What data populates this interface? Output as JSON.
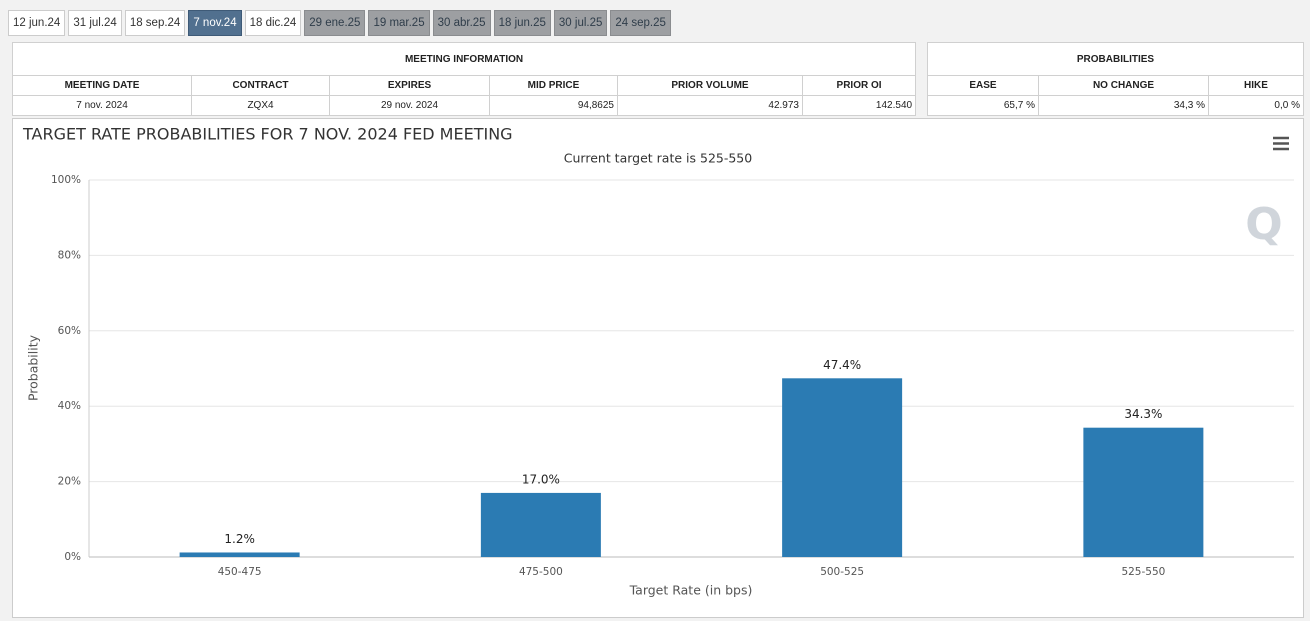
{
  "tabs": [
    "12 jun.24",
    "31 jul.24",
    "18 sep.24",
    "7 nov.24",
    "18 dic.24",
    "29 ene.25",
    "19 mar.25",
    "30 abr.25",
    "18 jun.25",
    "30 jul.25",
    "24 sep.25"
  ],
  "active_tab": 3,
  "meeting_information": {
    "title": "MEETING INFORMATION",
    "headers": [
      "MEETING DATE",
      "CONTRACT",
      "EXPIRES",
      "MID PRICE",
      "PRIOR VOLUME",
      "PRIOR OI"
    ],
    "rows": [
      [
        "7 nov. 2024",
        "ZQX4",
        "29 nov. 2024",
        "94,8625",
        "42.973",
        "142.540"
      ]
    ]
  },
  "probabilities": {
    "title": "PROBABILITIES",
    "headers": [
      "EASE",
      "NO CHANGE",
      "HIKE"
    ],
    "rows": [
      [
        "65,7 %",
        "34,3 %",
        "0,0 %"
      ]
    ]
  },
  "chart_data": {
    "type": "bar",
    "title": "TARGET RATE PROBABILITIES FOR 7 NOV. 2024 FED MEETING",
    "subtitle": "Current target rate is 525-550",
    "x_label": "Target Rate (in bps)",
    "y_label": "Probability",
    "categories": [
      "450-475",
      "475-500",
      "500-525",
      "525-550"
    ],
    "values": [
      1.2,
      17.0,
      47.4,
      34.3
    ],
    "value_labels": [
      "1.2%",
      "17.0%",
      "47.4%",
      "34.3%"
    ],
    "color": "#2b7bb3",
    "ylim": [
      0,
      100
    ],
    "yticks": [
      {
        "value": 0,
        "label": "0%"
      },
      {
        "value": 20,
        "label": "20%"
      },
      {
        "value": 40,
        "label": "40%"
      },
      {
        "value": 60,
        "label": "60%"
      },
      {
        "value": 80,
        "label": "80%"
      },
      {
        "value": 100,
        "label": "100%"
      }
    ],
    "grid": true
  }
}
